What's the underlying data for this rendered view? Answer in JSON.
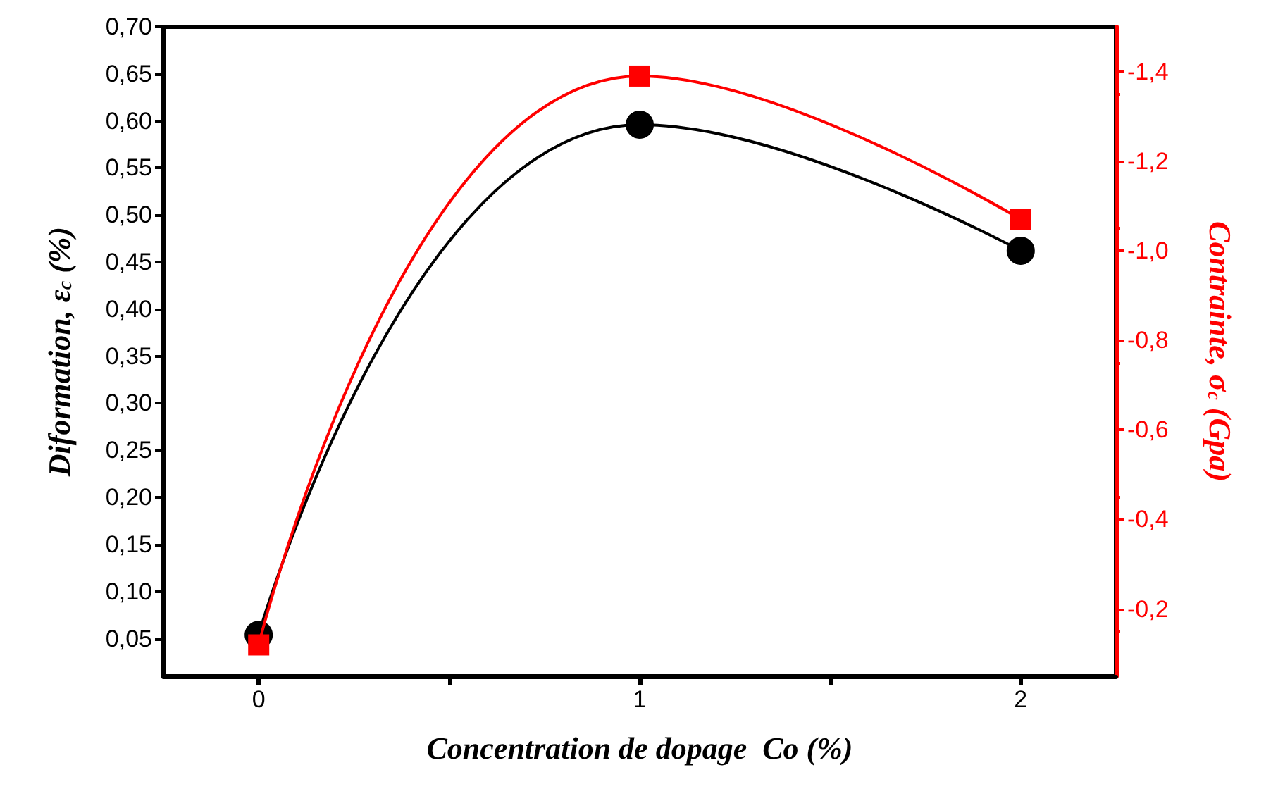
{
  "chart_data": {
    "type": "line",
    "xlabel": "Concentration de dopage  Co (%)",
    "ylabel": "Diformation, ε$_{c}$ (%)",
    "y2label": "Contrainte, σ$_{c}$ (Gpa)",
    "x": [
      0,
      1,
      2
    ],
    "xlim": [
      -0.25,
      2.25
    ],
    "xticks": [
      0,
      {
        "value": 0.5,
        "label": null
      },
      1,
      {
        "value": 1.5,
        "label": null
      },
      2
    ],
    "ylim": [
      0.01,
      0.7
    ],
    "yticks": [
      {
        "value": 0.05,
        "label": "0,05"
      },
      {
        "value": 0.1,
        "label": "0,10"
      },
      {
        "value": 0.15,
        "label": "0,15"
      },
      {
        "value": 0.2,
        "label": "0,20"
      },
      {
        "value": 0.25,
        "label": "0,25"
      },
      {
        "value": 0.3,
        "label": "0,30"
      },
      {
        "value": 0.35,
        "label": "0,35"
      },
      {
        "value": 0.4,
        "label": "0,40"
      },
      {
        "value": 0.45,
        "label": "0,45"
      },
      {
        "value": 0.5,
        "label": "0,50"
      },
      {
        "value": 0.55,
        "label": "0,55"
      },
      {
        "value": 0.6,
        "label": "0,60"
      },
      {
        "value": 0.65,
        "label": "0,65"
      },
      {
        "value": 0.7,
        "label": "0,70"
      }
    ],
    "y2lim": [
      -0.05,
      -1.5
    ],
    "y2ticks": [
      {
        "value": -0.2,
        "label": "-0,2"
      },
      {
        "value": -0.4,
        "label": "-0,4"
      },
      {
        "value": -0.6,
        "label": "-0,6"
      },
      {
        "value": -0.8,
        "label": "-0,8"
      },
      {
        "value": -1.0,
        "label": "-1,0"
      },
      {
        "value": -1.2,
        "label": "-1,2"
      },
      {
        "value": -1.4,
        "label": "-1,4"
      }
    ],
    "grid": false,
    "line_style": "solid",
    "series": [
      {
        "color": "#000000",
        "marker": "circle",
        "values": [
          0.054,
          0.596,
          0.462
        ]
      },
      {
        "color": "#ff0000",
        "marker": "square",
        "axis": "y2",
        "values": [
          -0.12,
          -1.39,
          -1.07
        ]
      }
    ]
  }
}
